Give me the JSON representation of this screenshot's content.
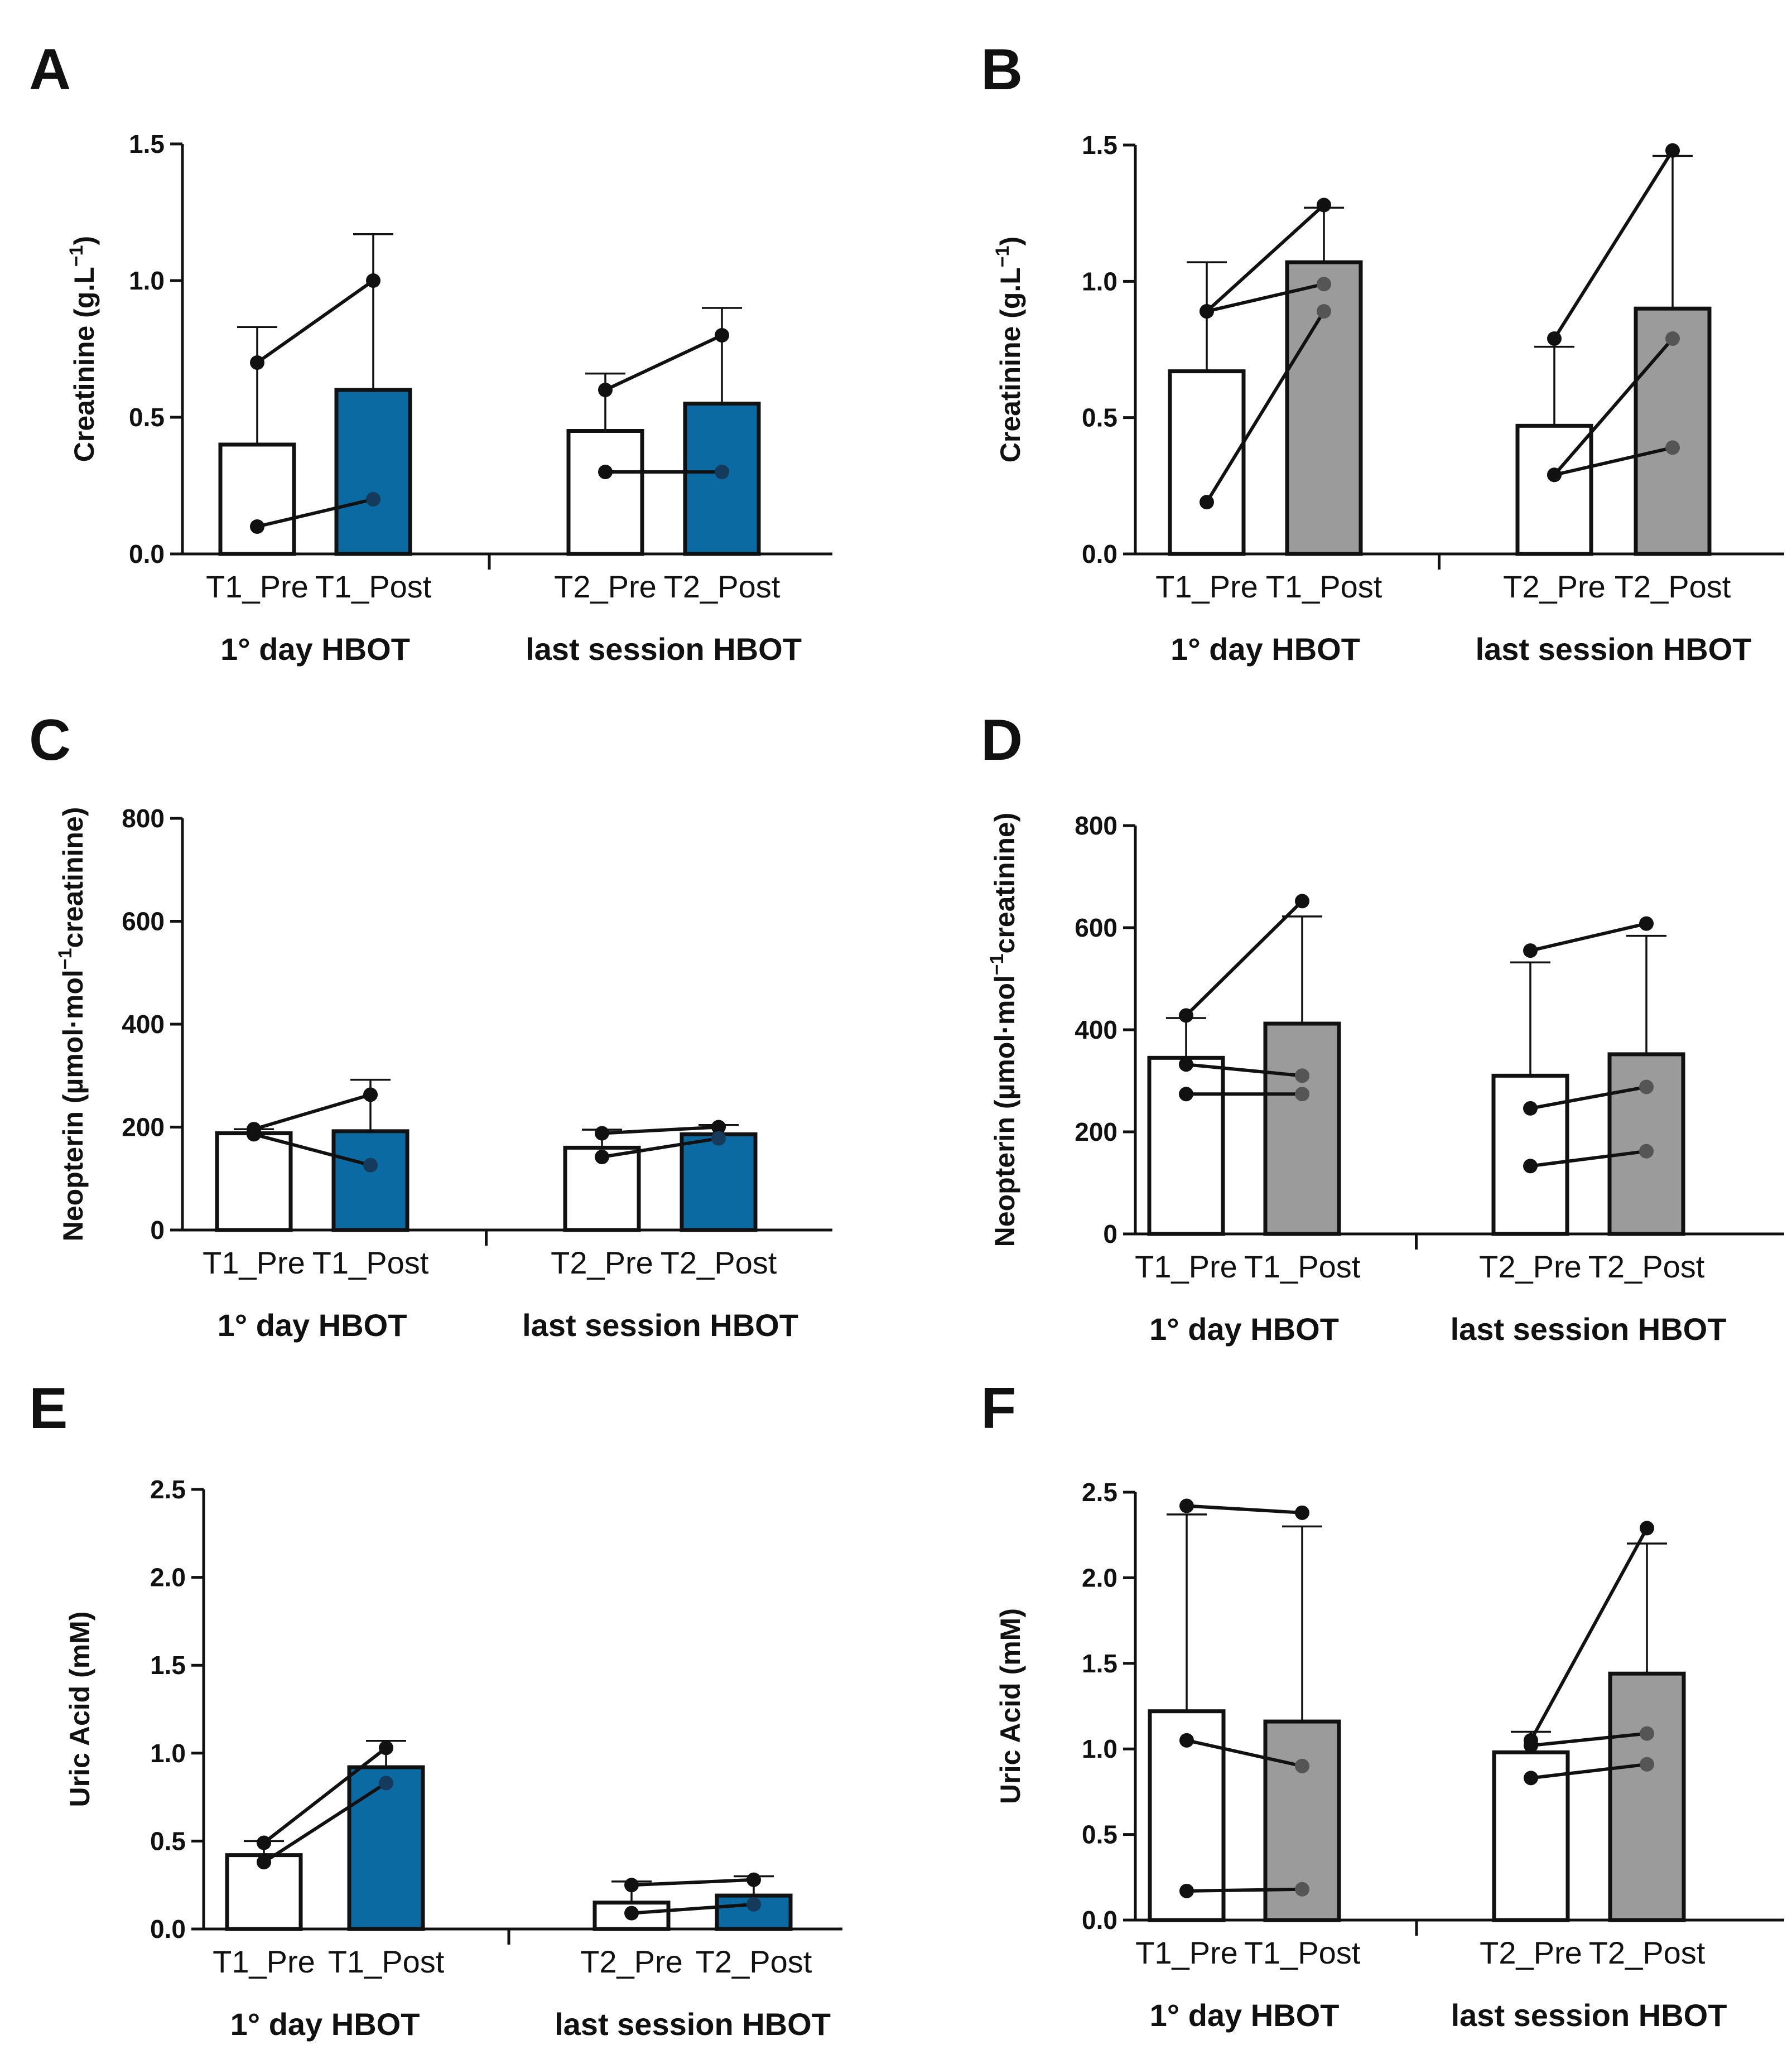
{
  "colors": {
    "blue": "#0b6aa2",
    "gray": "#9b9b9b",
    "white": "#ffffff",
    "stroke": "#111111",
    "dot_black": "#111111",
    "dot_on_blue": "#153b5c",
    "dot_on_gray": "#555555"
  },
  "chart_data": [
    {
      "panel": "A",
      "type": "bar",
      "fill": "blue",
      "title": "",
      "xlabel": "",
      "ylabel": "Creatinine (g.L⁻¹)",
      "ylabel_parts": [
        "Creatinine (g.L",
        "−1",
        ")"
      ],
      "ylim": [
        0,
        1.5
      ],
      "yticks": [
        "0.0",
        "0.5",
        "1.0",
        "1.5"
      ],
      "categories": [
        "T1_Pre",
        "T1_Post",
        "T2_Pre",
        "T2_Post"
      ],
      "groups": [
        "1° day HBOT",
        "last session HBOT"
      ],
      "values": [
        0.4,
        0.6,
        0.45,
        0.55
      ],
      "error": [
        0.83,
        1.17,
        0.66,
        0.9
      ],
      "subjects": [
        [
          [
            0.7,
            1.0
          ],
          [
            0.1,
            0.2
          ]
        ],
        [
          [
            0.6,
            0.8
          ],
          [
            0.3,
            0.3
          ]
        ]
      ]
    },
    {
      "panel": "B",
      "type": "bar",
      "fill": "gray",
      "title": "",
      "xlabel": "",
      "ylabel": "Creatinine (g.L⁻¹)",
      "ylabel_parts": [
        "Creatinine (g.L",
        "−1",
        ")"
      ],
      "ylim": [
        0,
        1.5
      ],
      "yticks": [
        "0.0",
        "0.5",
        "1.0",
        "1.5"
      ],
      "categories": [
        "T1_Pre",
        "T1_Post",
        "T2_Pre",
        "T2_Post"
      ],
      "groups": [
        "1° day HBOT",
        "last session HBOT"
      ],
      "values": [
        0.67,
        1.07,
        0.47,
        0.9
      ],
      "error": [
        1.07,
        1.27,
        0.76,
        1.46
      ],
      "subjects": [
        [
          [
            0.89,
            1.28
          ],
          [
            0.89,
            0.99
          ],
          [
            0.19,
            0.89
          ]
        ],
        [
          [
            0.79,
            1.48
          ],
          [
            0.29,
            0.79
          ],
          [
            0.29,
            0.39
          ]
        ]
      ]
    },
    {
      "panel": "C",
      "type": "bar",
      "fill": "blue",
      "title": "",
      "xlabel": "",
      "ylabel": "Neopterin (µmol·mol⁻¹creatinine)",
      "ylabel_parts": [
        "Neopterin (µmol·mol",
        "−1",
        "creatinine)"
      ],
      "ylim": [
        0,
        800
      ],
      "yticks": [
        "0",
        "200",
        "400",
        "600",
        "800"
      ],
      "categories": [
        "T1_Pre",
        "T1_Post",
        "T2_Pre",
        "T2_Post"
      ],
      "groups": [
        "1° day HBOT",
        "last session HBOT"
      ],
      "values": [
        188,
        192,
        160,
        186
      ],
      "error": [
        196,
        292,
        195,
        204
      ],
      "subjects": [
        [
          [
            196,
            263
          ],
          [
            186,
            126
          ]
        ],
        [
          [
            188,
            200
          ],
          [
            142,
            178
          ]
        ]
      ]
    },
    {
      "panel": "D",
      "type": "bar",
      "fill": "gray",
      "title": "",
      "xlabel": "",
      "ylabel": "Neopterin (µmol·mol⁻¹creatinine)",
      "ylabel_parts": [
        "Neopterin (µmol·mol",
        "−1",
        "creatinine)"
      ],
      "ylim": [
        0,
        800
      ],
      "yticks": [
        "0",
        "200",
        "400",
        "600",
        "800"
      ],
      "categories": [
        "T1_Pre",
        "T1_Post",
        "T2_Pre",
        "T2_Post"
      ],
      "groups": [
        "1° day HBOT",
        "last session HBOT"
      ],
      "values": [
        345,
        412,
        310,
        352
      ],
      "error": [
        423,
        622,
        532,
        584
      ],
      "subjects": [
        [
          [
            428,
            652
          ],
          [
            332,
            310
          ],
          [
            274,
            274
          ]
        ],
        [
          [
            555,
            608
          ],
          [
            246,
            288
          ],
          [
            133,
            162
          ]
        ]
      ]
    },
    {
      "panel": "E",
      "type": "bar",
      "fill": "blue",
      "title": "",
      "xlabel": "",
      "ylabel": "Uric Acid (mM)",
      "ylabel_parts": [
        "Uric Acid (mM)",
        "",
        ""
      ],
      "ylim": [
        0,
        2.5
      ],
      "yticks": [
        "0.0",
        "0.5",
        "1.0",
        "1.5",
        "2.0",
        "2.5"
      ],
      "categories": [
        "T1_Pre",
        "T1_Post",
        "T2_Pre",
        "T2_Post"
      ],
      "groups": [
        "1° day HBOT",
        "last session HBOT"
      ],
      "values": [
        0.42,
        0.92,
        0.15,
        0.19
      ],
      "error": [
        0.5,
        1.07,
        0.27,
        0.3
      ],
      "subjects": [
        [
          [
            0.49,
            1.03
          ],
          [
            0.38,
            0.83
          ]
        ],
        [
          [
            0.25,
            0.28
          ],
          [
            0.09,
            0.14
          ]
        ]
      ]
    },
    {
      "panel": "F",
      "type": "bar",
      "fill": "gray",
      "title": "",
      "xlabel": "",
      "ylabel": "Uric Acid (mM)",
      "ylabel_parts": [
        "Uric Acid (mM)",
        "",
        ""
      ],
      "ylim": [
        0,
        2.5
      ],
      "yticks": [
        "0.0",
        "0.5",
        "1.0",
        "1.5",
        "2.0",
        "2.5"
      ],
      "categories": [
        "T1_Pre",
        "T1_Post",
        "T2_Pre",
        "T2_Post"
      ],
      "groups": [
        "1° day HBOT",
        "last session HBOT"
      ],
      "values": [
        1.22,
        1.16,
        0.98,
        1.44
      ],
      "error": [
        2.37,
        2.3,
        1.1,
        2.2
      ],
      "subjects": [
        [
          [
            2.42,
            2.38
          ],
          [
            1.05,
            0.9
          ],
          [
            0.17,
            0.18
          ]
        ],
        [
          [
            1.05,
            2.29
          ],
          [
            1.02,
            1.09
          ],
          [
            0.83,
            0.91
          ]
        ]
      ]
    }
  ]
}
